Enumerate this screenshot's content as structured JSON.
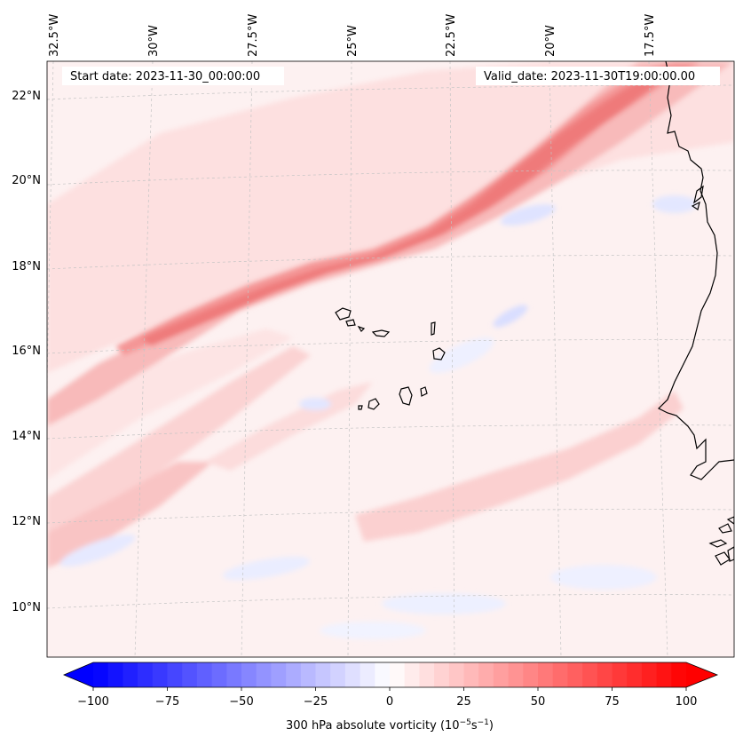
{
  "header": {
    "start_date": "Start date: 2023-11-30_00:00:00",
    "valid_date": "Valid_date: 2023-11-30T19:00:00.00"
  },
  "axes": {
    "lon_labels": [
      "32.5°W",
      "30°W",
      "27.5°W",
      "25°W",
      "22.5°W",
      "20°W",
      "17.5°W"
    ],
    "lat_labels": [
      "22°N",
      "20°N",
      "18°N",
      "16°N",
      "14°N",
      "12°N",
      "10°N"
    ]
  },
  "colorbar": {
    "ticks": [
      "−100",
      "−75",
      "−50",
      "−25",
      "0",
      "25",
      "50",
      "75",
      "100"
    ],
    "label": "300 hPa absolute vorticity (10",
    "label_exp1": "−5",
    "label_mid": "s",
    "label_exp2": "−1",
    "label_end": ")",
    "vmin": -100,
    "vmax": 100,
    "levels": 40,
    "cmap": "bwr"
  },
  "colors": {
    "min": "#0000ff",
    "zero": "#ffffff",
    "max": "#ff0000",
    "coastline": "#000000",
    "gridline": "#bbbbbb"
  }
}
